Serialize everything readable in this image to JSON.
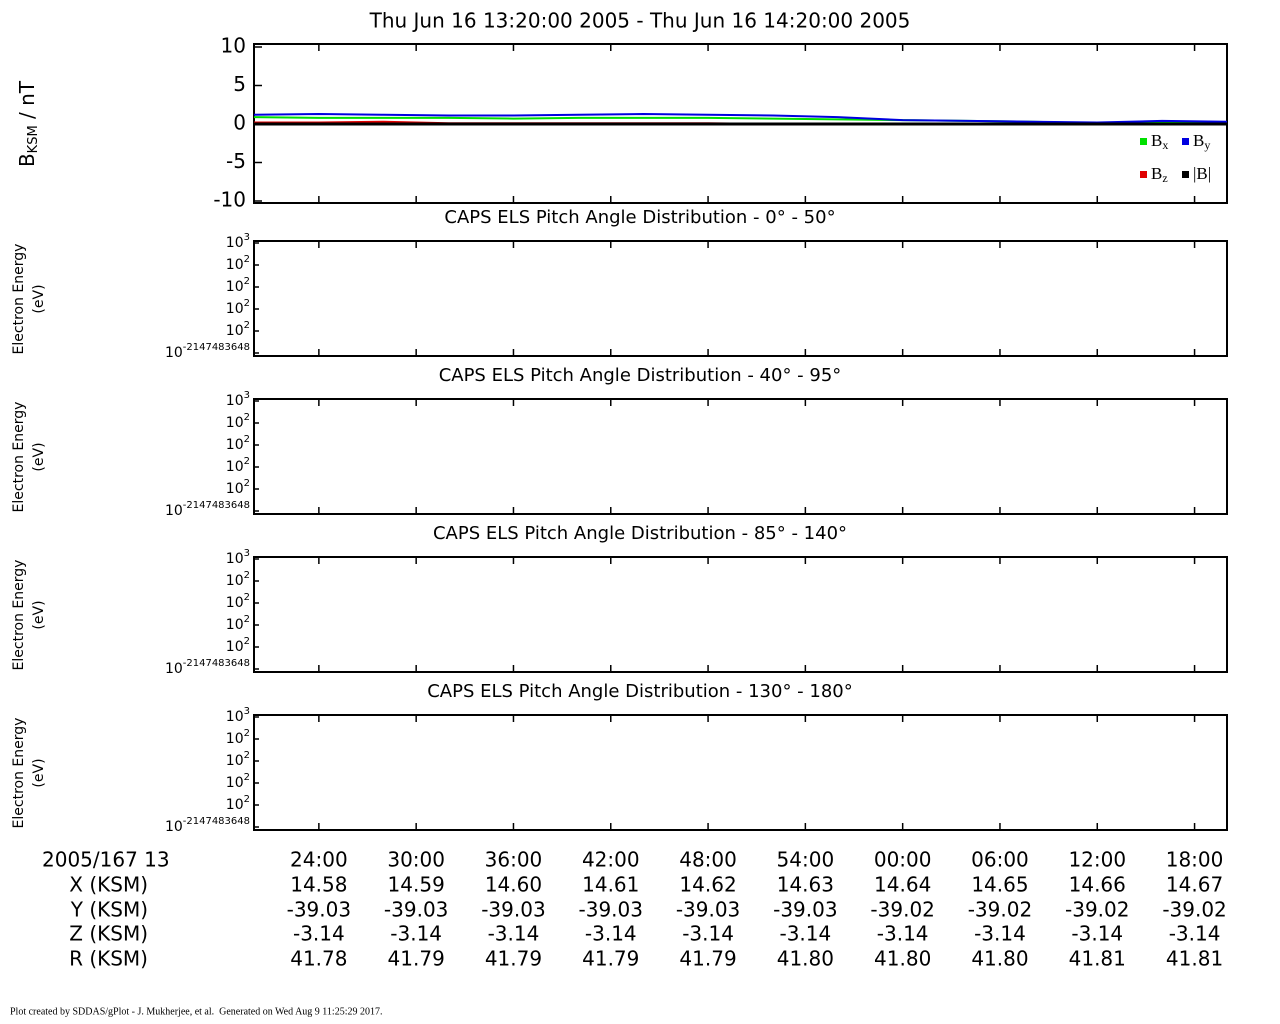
{
  "chart_data": [
    {
      "type": "line",
      "title": "Thu Jun 16 13:20:00 2005 - Thu Jun 16 14:20:00 2005",
      "y_label": {
        "main": "B",
        "sub": "KSM",
        "rest": " / nT"
      },
      "x": [
        20,
        24,
        28,
        32,
        36,
        40,
        44,
        48,
        52,
        56,
        60,
        64,
        68,
        72,
        76,
        80
      ],
      "xlim": [
        20,
        80
      ],
      "xticks": [
        {
          "value": 24,
          "label": "24:00"
        },
        {
          "value": 30,
          "label": "30:00"
        },
        {
          "value": 36,
          "label": "36:00"
        },
        {
          "value": 42,
          "label": "42:00"
        },
        {
          "value": 48,
          "label": "48:00"
        },
        {
          "value": 54,
          "label": "54:00"
        },
        {
          "value": 60,
          "label": "00:00"
        },
        {
          "value": 66,
          "label": "06:00"
        },
        {
          "value": 72,
          "label": "12:00"
        },
        {
          "value": 78,
          "label": "18:00"
        }
      ],
      "ylim": [
        -10,
        10
      ],
      "yticks": [
        -10,
        -5,
        0,
        5,
        10
      ],
      "series": [
        {
          "name": "B",
          "subscript": "x",
          "color": "#00e000",
          "values": [
            0.9,
            0.8,
            0.8,
            0.8,
            0.7,
            0.8,
            0.8,
            0.8,
            0.7,
            0.6,
            0.5,
            0.4,
            0.3,
            0.1,
            0.2,
            0.2
          ]
        },
        {
          "name": "B",
          "subscript": "y",
          "color": "#0000e0",
          "values": [
            1.2,
            1.3,
            1.2,
            1.1,
            1.1,
            1.2,
            1.3,
            1.2,
            1.1,
            0.9,
            0.5,
            0.4,
            0.3,
            0.2,
            0.4,
            0.3
          ]
        },
        {
          "name": "B",
          "subscript": "z",
          "color": "#e00000",
          "values": [
            0.2,
            0.2,
            0.3,
            0.1,
            0.1,
            0.1,
            0.1,
            0.1,
            0.0,
            0.0,
            0.0,
            0.0,
            0.0,
            0.0,
            0.0,
            0.0
          ]
        },
        {
          "name": "|B|",
          "color": "#000000",
          "values": [
            0,
            0,
            0,
            0,
            0,
            0,
            0,
            0,
            0,
            0,
            0,
            0,
            0,
            0,
            0,
            0
          ]
        }
      ]
    },
    {
      "type": "spectrogram",
      "title": "CAPS ELS Pitch Angle Distribution - 0° - 50°",
      "y_label": [
        "Electron Energy",
        "(eV)"
      ],
      "ytick_labels": [
        {
          "base": "10",
          "exponent": "3"
        },
        {
          "base": "10",
          "exponent": "2"
        },
        {
          "base": "10",
          "exponent": "2"
        },
        {
          "base": "10",
          "exponent": "2"
        },
        {
          "base": "10",
          "exponent": "2"
        },
        {
          "base": "10",
          "exponent": "-2147483648"
        }
      ]
    },
    {
      "type": "spectrogram",
      "title": "CAPS ELS Pitch Angle Distribution - 40° - 95°",
      "y_label": [
        "Electron Energy",
        "(eV)"
      ],
      "ytick_labels": [
        {
          "base": "10",
          "exponent": "3"
        },
        {
          "base": "10",
          "exponent": "2"
        },
        {
          "base": "10",
          "exponent": "2"
        },
        {
          "base": "10",
          "exponent": "2"
        },
        {
          "base": "10",
          "exponent": "2"
        },
        {
          "base": "10",
          "exponent": "-2147483648"
        }
      ]
    },
    {
      "type": "spectrogram",
      "title": "CAPS ELS Pitch Angle Distribution - 85° - 140°",
      "y_label": [
        "Electron Energy",
        "(eV)"
      ],
      "ytick_labels": [
        {
          "base": "10",
          "exponent": "3"
        },
        {
          "base": "10",
          "exponent": "2"
        },
        {
          "base": "10",
          "exponent": "2"
        },
        {
          "base": "10",
          "exponent": "2"
        },
        {
          "base": "10",
          "exponent": "2"
        },
        {
          "base": "10",
          "exponent": "-2147483648"
        }
      ]
    },
    {
      "type": "spectrogram",
      "title": "CAPS ELS Pitch Angle Distribution - 130° - 180°",
      "y_label": [
        "Electron Energy",
        "(eV)"
      ],
      "ytick_labels": [
        {
          "base": "10",
          "exponent": "3"
        },
        {
          "base": "10",
          "exponent": "2"
        },
        {
          "base": "10",
          "exponent": "2"
        },
        {
          "base": "10",
          "exponent": "2"
        },
        {
          "base": "10",
          "exponent": "2"
        },
        {
          "base": "10",
          "exponent": "-2147483648"
        }
      ]
    }
  ],
  "ephemeris": {
    "label": "2005/167 13",
    "rows": [
      {
        "name": "X (KSM)",
        "values": [
          "14.58",
          "14.59",
          "14.60",
          "14.61",
          "14.62",
          "14.63",
          "14.64",
          "14.65",
          "14.66",
          "14.67"
        ]
      },
      {
        "name": "Y (KSM)",
        "values": [
          "-39.03",
          "-39.03",
          "-39.03",
          "-39.03",
          "-39.03",
          "-39.03",
          "-39.02",
          "-39.02",
          "-39.02",
          "-39.02"
        ]
      },
      {
        "name": "Z (KSM)",
        "values": [
          "-3.14",
          "-3.14",
          "-3.14",
          "-3.14",
          "-3.14",
          "-3.14",
          "-3.14",
          "-3.14",
          "-3.14",
          "-3.14"
        ]
      },
      {
        "name": "R (KSM)",
        "values": [
          "41.78",
          "41.79",
          "41.79",
          "41.79",
          "41.79",
          "41.80",
          "41.80",
          "41.80",
          "41.81",
          "41.81"
        ]
      }
    ]
  },
  "footer": "Plot created by SDDAS/gPlot - J. Mukherjee, et al.  Generated on Wed Aug 9 11:25:29 2017."
}
